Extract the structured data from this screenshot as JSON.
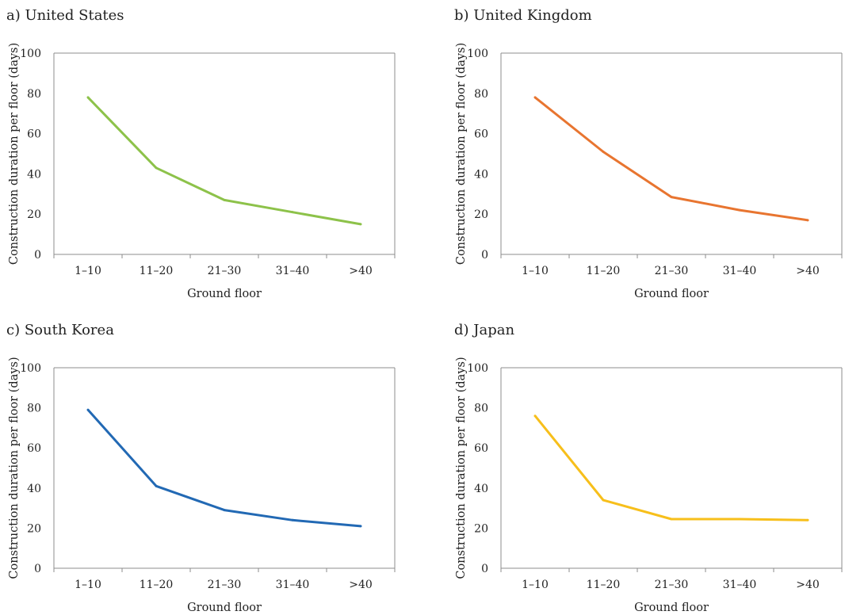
{
  "chart_data": [
    {
      "type": "line",
      "title": "a) United States",
      "xlabel": "Ground floor",
      "ylabel": "Construction duration per floor (days)",
      "categories": [
        "1–10",
        "11–20",
        "21–30",
        "31–40",
        ">40"
      ],
      "values": [
        78,
        43,
        27,
        21,
        15
      ],
      "ylim": [
        0,
        100
      ],
      "yticks": [
        "0",
        "20",
        "40",
        "60",
        "80",
        "100"
      ],
      "color": "#8dc24a",
      "grid": false
    },
    {
      "type": "line",
      "title": "b) United Kingdom",
      "xlabel": "Ground floor",
      "ylabel": "Construction duration per floor (days)",
      "categories": [
        "1–10",
        "11–20",
        "21–30",
        "31–40",
        ">40"
      ],
      "values": [
        78,
        51,
        28.5,
        22,
        17
      ],
      "ylim": [
        0,
        100
      ],
      "yticks": [
        "0",
        "20",
        "40",
        "60",
        "80",
        "100"
      ],
      "color": "#e87530",
      "grid": false
    },
    {
      "type": "line",
      "title": "c) South Korea",
      "xlabel": "Ground floor",
      "ylabel": "Construction duration per floor (days)",
      "categories": [
        "1–10",
        "11–20",
        "21–30",
        "31–40",
        ">40"
      ],
      "values": [
        79,
        41,
        29,
        24,
        21
      ],
      "ylim": [
        0,
        100
      ],
      "yticks": [
        "0",
        "20",
        "40",
        "60",
        "80",
        "100"
      ],
      "color": "#2269b4",
      "grid": false
    },
    {
      "type": "line",
      "title": "d) Japan",
      "xlabel": "Ground floor",
      "ylabel": "Construction duration per floor (days)",
      "categories": [
        "1–10",
        "11–20",
        "21–30",
        "31–40",
        ">40"
      ],
      "values": [
        76,
        34,
        24.5,
        24.5,
        24
      ],
      "ylim": [
        0,
        100
      ],
      "yticks": [
        "0",
        "20",
        "40",
        "60",
        "80",
        "100"
      ],
      "color": "#f7bf1b",
      "grid": false
    }
  ]
}
